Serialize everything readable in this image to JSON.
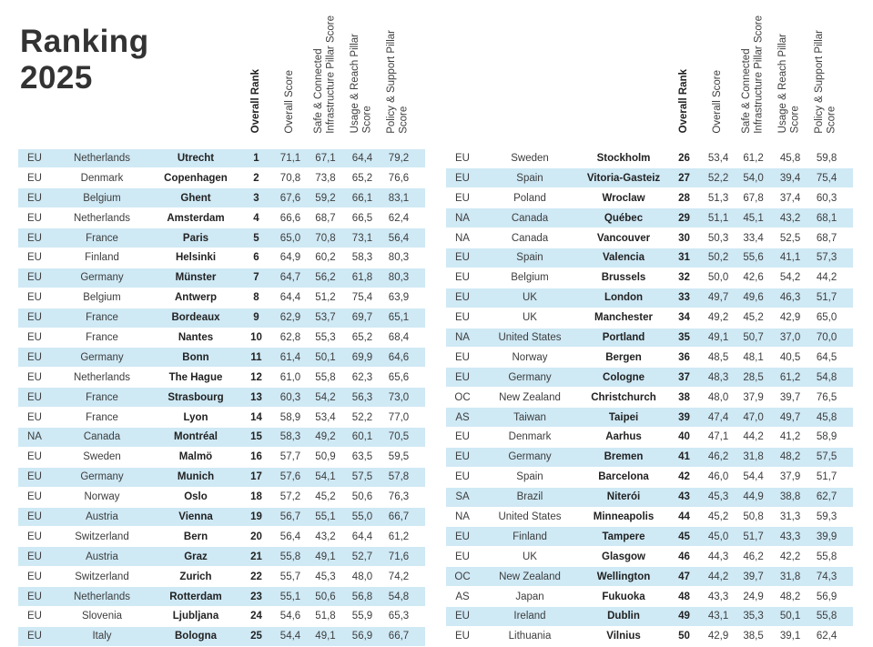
{
  "title": {
    "line1": "Ranking",
    "line2": "2025"
  },
  "columns": {
    "rank": "Overall Rank",
    "score": "Overall Score",
    "infra": "Safe & Connected\nInfrastructure Pillar Score",
    "usage": "Usage & Reach Pillar\nScore",
    "policy": "Policy & Support Pillar\nScore"
  },
  "colors": {
    "row_alt": "#cfe9f5",
    "text": "#3d3d3d",
    "text_bold": "#222222",
    "title": "#333333"
  },
  "tables": [
    {
      "rows": [
        {
          "region": "EU",
          "country": "Netherlands",
          "city": "Utrecht",
          "rank": "1",
          "score": "71,1",
          "infra": "67,1",
          "usage": "64,4",
          "policy": "79,2"
        },
        {
          "region": "EU",
          "country": "Denmark",
          "city": "Copenhagen",
          "rank": "2",
          "score": "70,8",
          "infra": "73,8",
          "usage": "65,2",
          "policy": "76,6"
        },
        {
          "region": "EU",
          "country": "Belgium",
          "city": "Ghent",
          "rank": "3",
          "score": "67,6",
          "infra": "59,2",
          "usage": "66,1",
          "policy": "83,1"
        },
        {
          "region": "EU",
          "country": "Netherlands",
          "city": "Amsterdam",
          "rank": "4",
          "score": "66,6",
          "infra": "68,7",
          "usage": "66,5",
          "policy": "62,4"
        },
        {
          "region": "EU",
          "country": "France",
          "city": "Paris",
          "rank": "5",
          "score": "65,0",
          "infra": "70,8",
          "usage": "73,1",
          "policy": "56,4"
        },
        {
          "region": "EU",
          "country": "Finland",
          "city": "Helsinki",
          "rank": "6",
          "score": "64,9",
          "infra": "60,2",
          "usage": "58,3",
          "policy": "80,3"
        },
        {
          "region": "EU",
          "country": "Germany",
          "city": "Münster",
          "rank": "7",
          "score": "64,7",
          "infra": "56,2",
          "usage": "61,8",
          "policy": "80,3"
        },
        {
          "region": "EU",
          "country": "Belgium",
          "city": "Antwerp",
          "rank": "8",
          "score": "64,4",
          "infra": "51,2",
          "usage": "75,4",
          "policy": "63,9"
        },
        {
          "region": "EU",
          "country": "France",
          "city": "Bordeaux",
          "rank": "9",
          "score": "62,9",
          "infra": "53,7",
          "usage": "69,7",
          "policy": "65,1"
        },
        {
          "region": "EU",
          "country": "France",
          "city": "Nantes",
          "rank": "10",
          "score": "62,8",
          "infra": "55,3",
          "usage": "65,2",
          "policy": "68,4"
        },
        {
          "region": "EU",
          "country": "Germany",
          "city": "Bonn",
          "rank": "11",
          "score": "61,4",
          "infra": "50,1",
          "usage": "69,9",
          "policy": "64,6"
        },
        {
          "region": "EU",
          "country": "Netherlands",
          "city": "The Hague",
          "rank": "12",
          "score": "61,0",
          "infra": "55,8",
          "usage": "62,3",
          "policy": "65,6"
        },
        {
          "region": "EU",
          "country": "France",
          "city": "Strasbourg",
          "rank": "13",
          "score": "60,3",
          "infra": "54,2",
          "usage": "56,3",
          "policy": "73,0"
        },
        {
          "region": "EU",
          "country": "France",
          "city": "Lyon",
          "rank": "14",
          "score": "58,9",
          "infra": "53,4",
          "usage": "52,2",
          "policy": "77,0"
        },
        {
          "region": "NA",
          "country": "Canada",
          "city": "Montréal",
          "rank": "15",
          "score": "58,3",
          "infra": "49,2",
          "usage": "60,1",
          "policy": "70,5"
        },
        {
          "region": "EU",
          "country": "Sweden",
          "city": "Malmö",
          "rank": "16",
          "score": "57,7",
          "infra": "50,9",
          "usage": "63,5",
          "policy": "59,5"
        },
        {
          "region": "EU",
          "country": "Germany",
          "city": "Munich",
          "rank": "17",
          "score": "57,6",
          "infra": "54,1",
          "usage": "57,5",
          "policy": "57,8"
        },
        {
          "region": "EU",
          "country": "Norway",
          "city": "Oslo",
          "rank": "18",
          "score": "57,2",
          "infra": "45,2",
          "usage": "50,6",
          "policy": "76,3"
        },
        {
          "region": "EU",
          "country": "Austria",
          "city": "Vienna",
          "rank": "19",
          "score": "56,7",
          "infra": "55,1",
          "usage": "55,0",
          "policy": "66,7"
        },
        {
          "region": "EU",
          "country": "Switzerland",
          "city": "Bern",
          "rank": "20",
          "score": "56,4",
          "infra": "43,2",
          "usage": "64,4",
          "policy": "61,2"
        },
        {
          "region": "EU",
          "country": "Austria",
          "city": "Graz",
          "rank": "21",
          "score": "55,8",
          "infra": "49,1",
          "usage": "52,7",
          "policy": "71,6"
        },
        {
          "region": "EU",
          "country": "Switzerland",
          "city": "Zurich",
          "rank": "22",
          "score": "55,7",
          "infra": "45,3",
          "usage": "48,0",
          "policy": "74,2"
        },
        {
          "region": "EU",
          "country": "Netherlands",
          "city": "Rotterdam",
          "rank": "23",
          "score": "55,1",
          "infra": "50,6",
          "usage": "56,8",
          "policy": "54,8"
        },
        {
          "region": "EU",
          "country": "Slovenia",
          "city": "Ljubljana",
          "rank": "24",
          "score": "54,6",
          "infra": "51,8",
          "usage": "55,9",
          "policy": "65,3"
        },
        {
          "region": "EU",
          "country": "Italy",
          "city": "Bologna",
          "rank": "25",
          "score": "54,4",
          "infra": "49,1",
          "usage": "56,9",
          "policy": "66,7"
        }
      ]
    },
    {
      "rows": [
        {
          "region": "EU",
          "country": "Sweden",
          "city": "Stockholm",
          "rank": "26",
          "score": "53,4",
          "infra": "61,2",
          "usage": "45,8",
          "policy": "59,8"
        },
        {
          "region": "EU",
          "country": "Spain",
          "city": "Vitoria-Gasteiz",
          "rank": "27",
          "score": "52,2",
          "infra": "54,0",
          "usage": "39,4",
          "policy": "75,4"
        },
        {
          "region": "EU",
          "country": "Poland",
          "city": "Wroclaw",
          "rank": "28",
          "score": "51,3",
          "infra": "67,8",
          "usage": "37,4",
          "policy": "60,3"
        },
        {
          "region": "NA",
          "country": "Canada",
          "city": "Québec",
          "rank": "29",
          "score": "51,1",
          "infra": "45,1",
          "usage": "43,2",
          "policy": "68,1"
        },
        {
          "region": "NA",
          "country": "Canada",
          "city": "Vancouver",
          "rank": "30",
          "score": "50,3",
          "infra": "33,4",
          "usage": "52,5",
          "policy": "68,7"
        },
        {
          "region": "EU",
          "country": "Spain",
          "city": "Valencia",
          "rank": "31",
          "score": "50,2",
          "infra": "55,6",
          "usage": "41,1",
          "policy": "57,3"
        },
        {
          "region": "EU",
          "country": "Belgium",
          "city": "Brussels",
          "rank": "32",
          "score": "50,0",
          "infra": "42,6",
          "usage": "54,2",
          "policy": "44,2"
        },
        {
          "region": "EU",
          "country": "UK",
          "city": "London",
          "rank": "33",
          "score": "49,7",
          "infra": "49,6",
          "usage": "46,3",
          "policy": "51,7"
        },
        {
          "region": "EU",
          "country": "UK",
          "city": "Manchester",
          "rank": "34",
          "score": "49,2",
          "infra": "45,2",
          "usage": "42,9",
          "policy": "65,0"
        },
        {
          "region": "NA",
          "country": "United States",
          "city": "Portland",
          "rank": "35",
          "score": "49,1",
          "infra": "50,7",
          "usage": "37,0",
          "policy": "70,0"
        },
        {
          "region": "EU",
          "country": "Norway",
          "city": "Bergen",
          "rank": "36",
          "score": "48,5",
          "infra": "48,1",
          "usage": "40,5",
          "policy": "64,5"
        },
        {
          "region": "EU",
          "country": "Germany",
          "city": "Cologne",
          "rank": "37",
          "score": "48,3",
          "infra": "28,5",
          "usage": "61,2",
          "policy": "54,8"
        },
        {
          "region": "OC",
          "country": "New Zealand",
          "city": "Christchurch",
          "rank": "38",
          "score": "48,0",
          "infra": "37,9",
          "usage": "39,7",
          "policy": "76,5"
        },
        {
          "region": "AS",
          "country": "Taiwan",
          "city": "Taipei",
          "rank": "39",
          "score": "47,4",
          "infra": "47,0",
          "usage": "49,7",
          "policy": "45,8"
        },
        {
          "region": "EU",
          "country": "Denmark",
          "city": "Aarhus",
          "rank": "40",
          "score": "47,1",
          "infra": "44,2",
          "usage": "41,2",
          "policy": "58,9"
        },
        {
          "region": "EU",
          "country": "Germany",
          "city": "Bremen",
          "rank": "41",
          "score": "46,2",
          "infra": "31,8",
          "usage": "48,2",
          "policy": "57,5"
        },
        {
          "region": "EU",
          "country": "Spain",
          "city": "Barcelona",
          "rank": "42",
          "score": "46,0",
          "infra": "54,4",
          "usage": "37,9",
          "policy": "51,7"
        },
        {
          "region": "SA",
          "country": "Brazil",
          "city": "Niterói",
          "rank": "43",
          "score": "45,3",
          "infra": "44,9",
          "usage": "38,8",
          "policy": "62,7"
        },
        {
          "region": "NA",
          "country": "United States",
          "city": "Minneapolis",
          "rank": "44",
          "score": "45,2",
          "infra": "50,8",
          "usage": "31,3",
          "policy": "59,3"
        },
        {
          "region": "EU",
          "country": "Finland",
          "city": "Tampere",
          "rank": "45",
          "score": "45,0",
          "infra": "51,7",
          "usage": "43,3",
          "policy": "39,9"
        },
        {
          "region": "EU",
          "country": "UK",
          "city": "Glasgow",
          "rank": "46",
          "score": "44,3",
          "infra": "46,2",
          "usage": "42,2",
          "policy": "55,8"
        },
        {
          "region": "OC",
          "country": "New Zealand",
          "city": "Wellington",
          "rank": "47",
          "score": "44,2",
          "infra": "39,7",
          "usage": "31,8",
          "policy": "74,3"
        },
        {
          "region": "AS",
          "country": "Japan",
          "city": "Fukuoka",
          "rank": "48",
          "score": "43,3",
          "infra": "24,9",
          "usage": "48,2",
          "policy": "56,9"
        },
        {
          "region": "EU",
          "country": "Ireland",
          "city": "Dublin",
          "rank": "49",
          "score": "43,1",
          "infra": "35,3",
          "usage": "50,1",
          "policy": "55,8"
        },
        {
          "region": "EU",
          "country": "Lithuania",
          "city": "Vilnius",
          "rank": "50",
          "score": "42,9",
          "infra": "38,5",
          "usage": "39,1",
          "policy": "62,4"
        }
      ]
    }
  ]
}
